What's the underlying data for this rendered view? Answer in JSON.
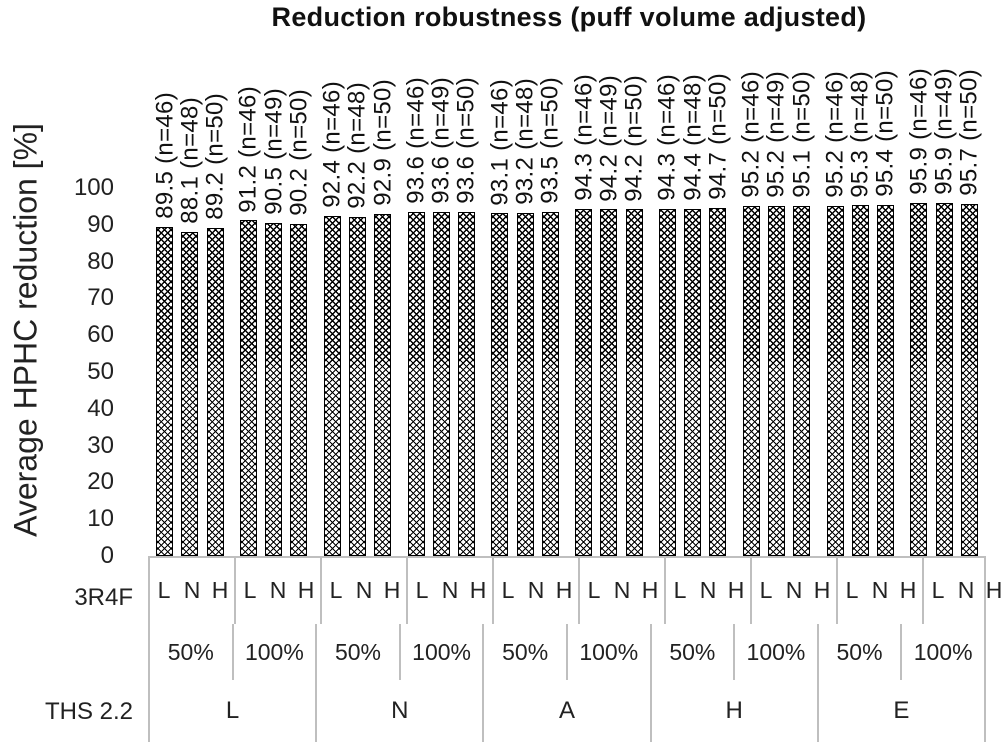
{
  "chart_data": {
    "type": "bar",
    "title": "Reduction robustness (puff volume adjusted)",
    "ylabel": "Average HPHC reduction [%]",
    "ylim": [
      0,
      100
    ],
    "yticks": [
      0,
      10,
      20,
      30,
      40,
      50,
      60,
      70,
      80,
      90,
      100
    ],
    "grid": false,
    "legend": null,
    "bar_pattern": "dotted-diamond-black-on-white",
    "axis": {
      "row1_header": "3R4F",
      "row3_header": "THS 2.2",
      "row3_categories": [
        "L",
        "N",
        "A",
        "H",
        "E"
      ]
    },
    "groups": [
      {
        "ths22": "L",
        "puff_volume": "50%",
        "bars": [
          {
            "label_3r4f": "L",
            "value": 89.5,
            "n": 46,
            "label": "89.5 (n=46)"
          },
          {
            "label_3r4f": "N",
            "value": 88.1,
            "n": 48,
            "label": "88.1 (n=48)"
          },
          {
            "label_3r4f": "H",
            "value": 89.2,
            "n": 50,
            "label": "89.2 (n=50)"
          }
        ]
      },
      {
        "ths22": "L",
        "puff_volume": "100%",
        "bars": [
          {
            "label_3r4f": "L",
            "value": 91.2,
            "n": 46,
            "label": "91.2 (n=46)"
          },
          {
            "label_3r4f": "N",
            "value": 90.5,
            "n": 49,
            "label": "90.5 (n=49)"
          },
          {
            "label_3r4f": "H",
            "value": 90.2,
            "n": 50,
            "label": "90.2 (n=50)"
          }
        ]
      },
      {
        "ths22": "N",
        "puff_volume": "50%",
        "bars": [
          {
            "label_3r4f": "L",
            "value": 92.4,
            "n": 46,
            "label": "92.4 (n=46)"
          },
          {
            "label_3r4f": "N",
            "value": 92.2,
            "n": 48,
            "label": "92.2 (n=48)"
          },
          {
            "label_3r4f": "H",
            "value": 92.9,
            "n": 50,
            "label": "92.9 (n=50)"
          }
        ]
      },
      {
        "ths22": "N",
        "puff_volume": "100%",
        "bars": [
          {
            "label_3r4f": "L",
            "value": 93.6,
            "n": 46,
            "label": "93.6 (n=46)"
          },
          {
            "label_3r4f": "N",
            "value": 93.6,
            "n": 49,
            "label": "93.6 (n=49)"
          },
          {
            "label_3r4f": "H",
            "value": 93.6,
            "n": 50,
            "label": "93.6 (n=50)"
          }
        ]
      },
      {
        "ths22": "A",
        "puff_volume": "50%",
        "bars": [
          {
            "label_3r4f": "L",
            "value": 93.1,
            "n": 46,
            "label": "93.1 (n=46)"
          },
          {
            "label_3r4f": "N",
            "value": 93.2,
            "n": 48,
            "label": "93.2 (n=48)"
          },
          {
            "label_3r4f": "H",
            "value": 93.5,
            "n": 50,
            "label": "93.5 (n=50)"
          }
        ]
      },
      {
        "ths22": "A",
        "puff_volume": "100%",
        "bars": [
          {
            "label_3r4f": "L",
            "value": 94.3,
            "n": 46,
            "label": "94.3 (n=46)"
          },
          {
            "label_3r4f": "N",
            "value": 94.2,
            "n": 49,
            "label": "94.2 (n=49)"
          },
          {
            "label_3r4f": "H",
            "value": 94.2,
            "n": 50,
            "label": "94.2 (n=50)"
          }
        ]
      },
      {
        "ths22": "H",
        "puff_volume": "50%",
        "bars": [
          {
            "label_3r4f": "L",
            "value": 94.3,
            "n": 46,
            "label": "94.3 (n=46)"
          },
          {
            "label_3r4f": "N",
            "value": 94.4,
            "n": 48,
            "label": "94.4 (n=48)"
          },
          {
            "label_3r4f": "H",
            "value": 94.7,
            "n": 50,
            "label": "94.7 (n=50)"
          }
        ]
      },
      {
        "ths22": "H",
        "puff_volume": "100%",
        "bars": [
          {
            "label_3r4f": "L",
            "value": 95.2,
            "n": 46,
            "label": "95.2 (n=46)"
          },
          {
            "label_3r4f": "N",
            "value": 95.2,
            "n": 49,
            "label": "95.2 (n=49)"
          },
          {
            "label_3r4f": "H",
            "value": 95.1,
            "n": 50,
            "label": "95.1 (n=50)"
          }
        ]
      },
      {
        "ths22": "E",
        "puff_volume": "50%",
        "bars": [
          {
            "label_3r4f": "L",
            "value": 95.2,
            "n": 46,
            "label": "95.2 (n=46)"
          },
          {
            "label_3r4f": "N",
            "value": 95.3,
            "n": 48,
            "label": "95.3 (n=48)"
          },
          {
            "label_3r4f": "H",
            "value": 95.4,
            "n": 50,
            "label": "95.4 (n=50)"
          }
        ]
      },
      {
        "ths22": "E",
        "puff_volume": "100%",
        "bars": [
          {
            "label_3r4f": "L",
            "value": 95.9,
            "n": 46,
            "label": "95.9 (n=46)"
          },
          {
            "label_3r4f": "N",
            "value": 95.9,
            "n": 49,
            "label": "95.9 (n=49)"
          },
          {
            "label_3r4f": "H",
            "value": 95.7,
            "n": 50,
            "label": "95.7 (n=50)"
          }
        ]
      }
    ]
  }
}
